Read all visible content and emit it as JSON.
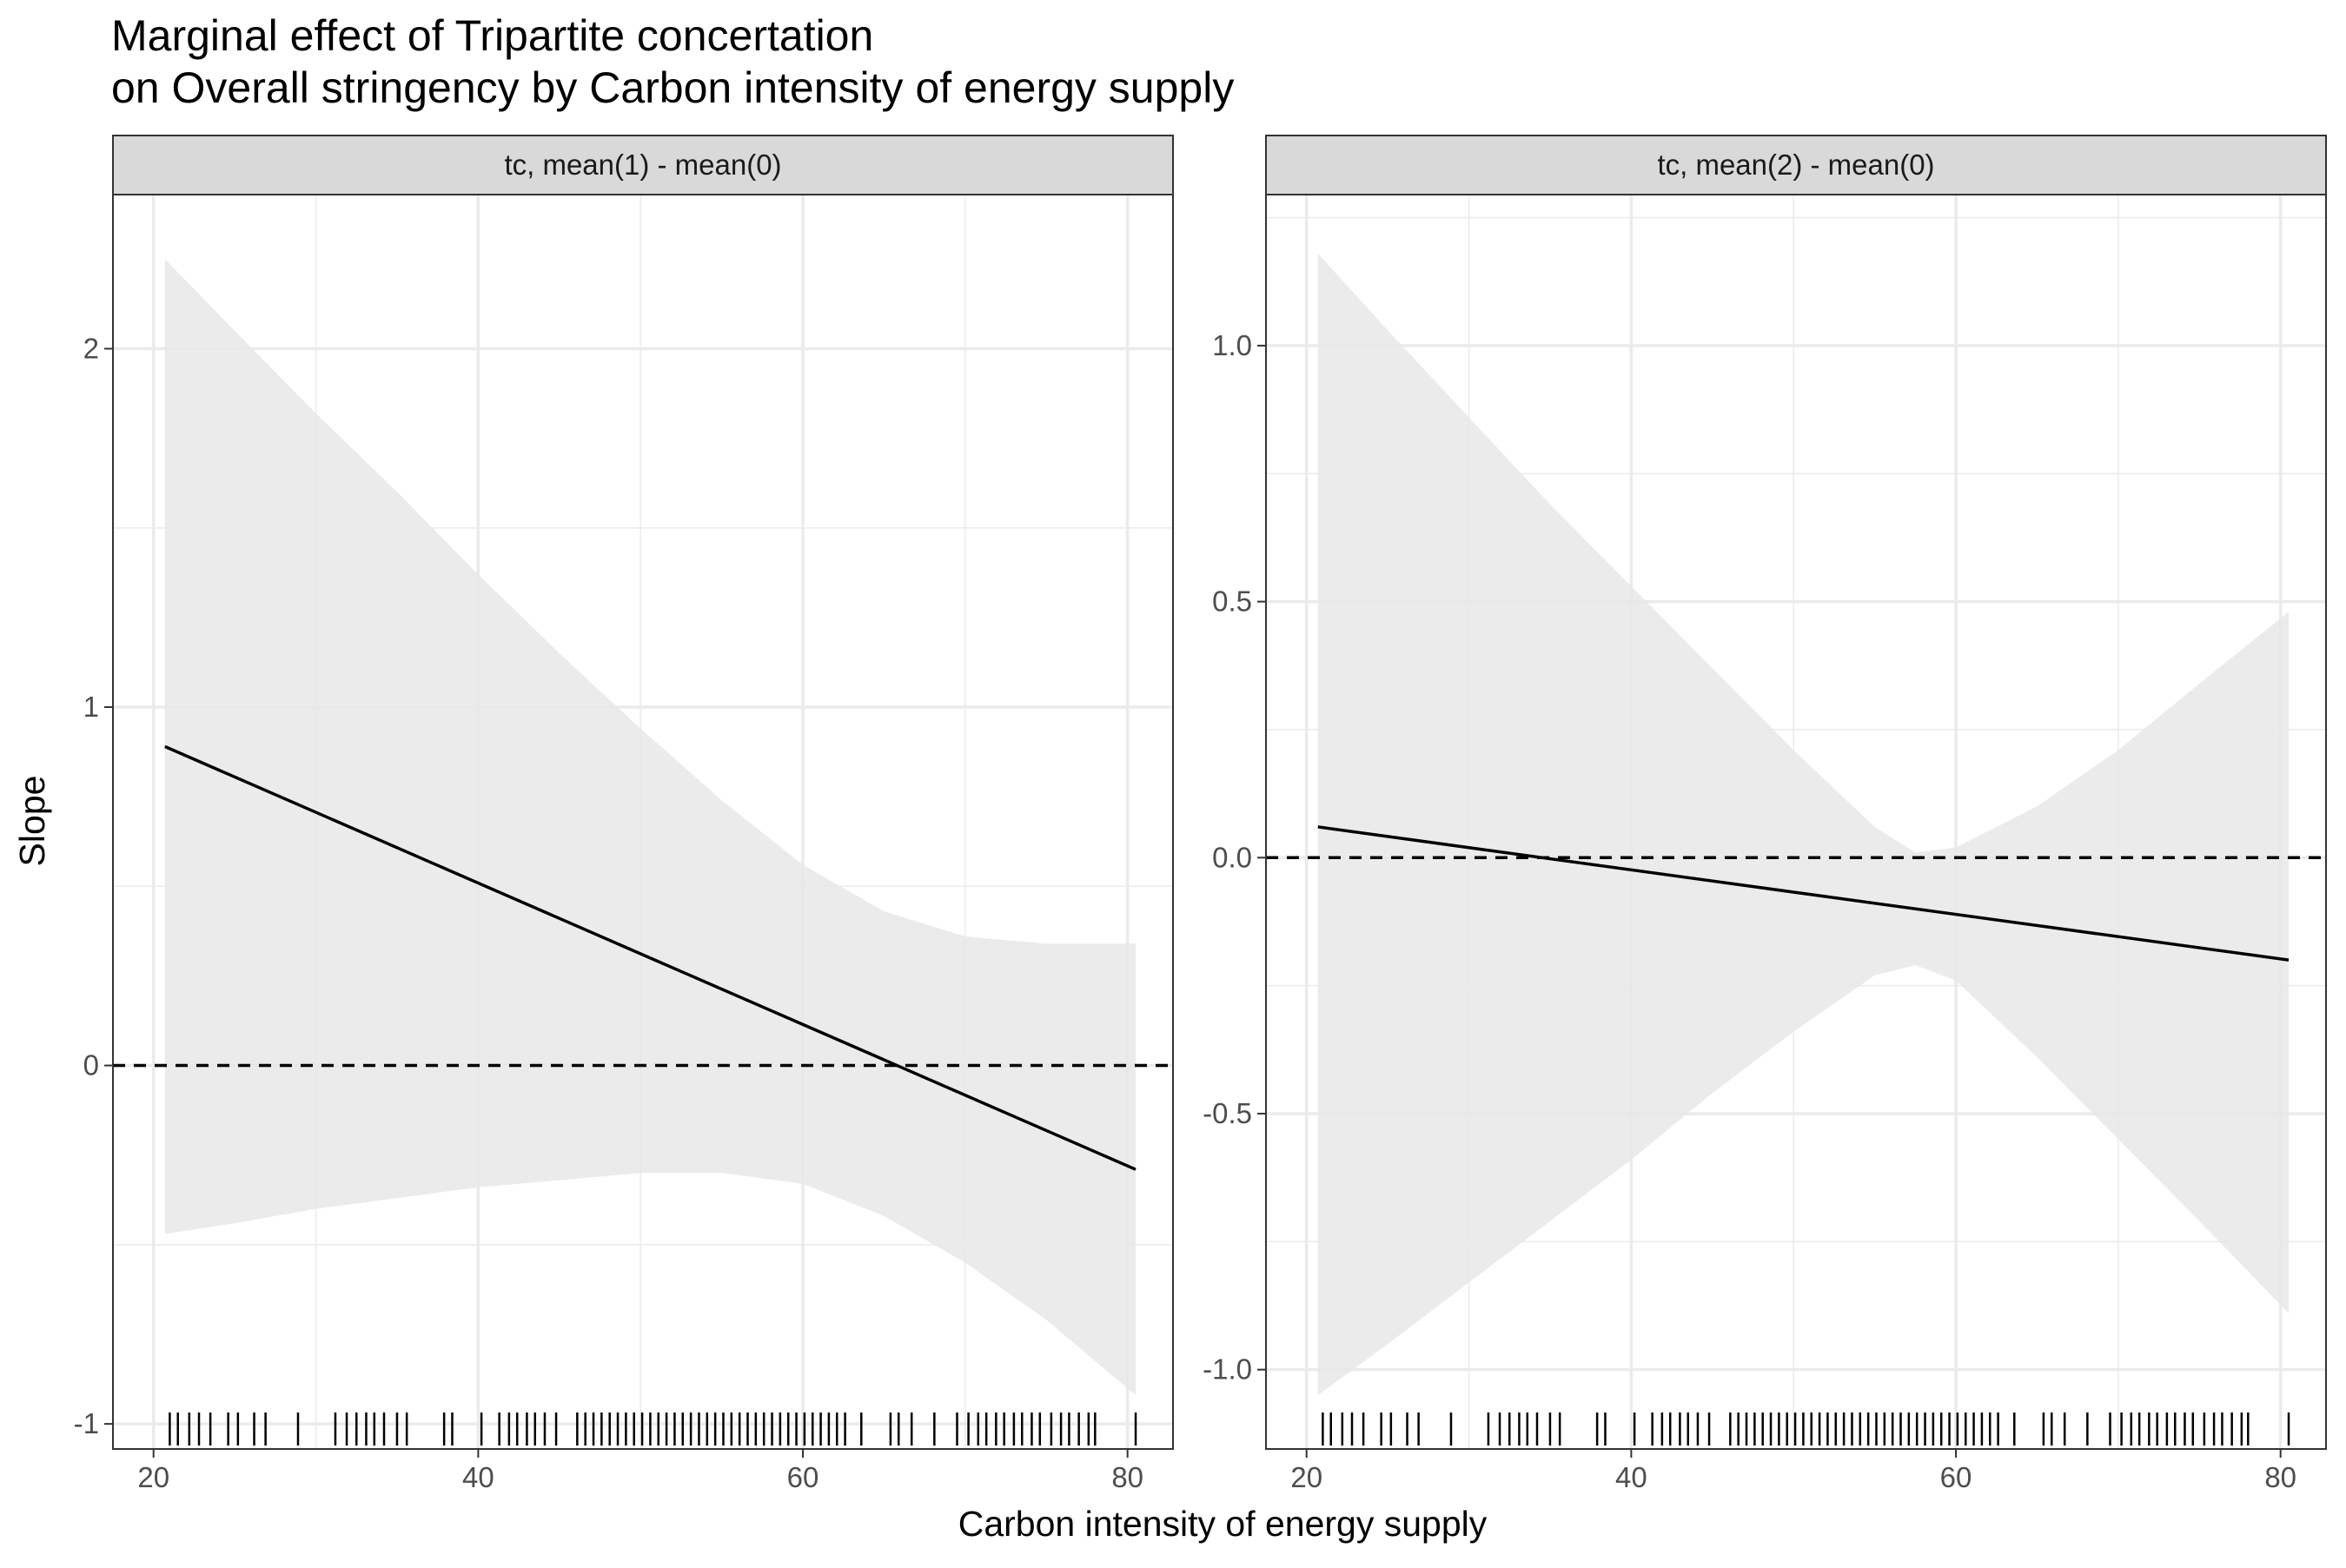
{
  "title": {
    "line1": "Marginal effect of Tripartite concertation",
    "line2": "on Overall stringency by Carbon intensity of energy supply"
  },
  "xlabel": "Carbon intensity of energy supply",
  "ylabel": "Slope",
  "colors": {
    "ribbon": "#e8e8e8",
    "line": "#000000",
    "strip_fill": "#d9d9d9",
    "grid": "#ebebeb",
    "border": "#333333"
  },
  "chart_data": [
    {
      "type": "line",
      "panel": "tc, mean(1) - mean(0)",
      "xlim": [
        17.5,
        82.8
      ],
      "ylim": [
        -1.07,
        2.43
      ],
      "xticks": [
        20,
        40,
        60,
        80
      ],
      "xtick_labels": [
        "20",
        "40",
        "60",
        "80"
      ],
      "yticks": [
        -1,
        0,
        1,
        2
      ],
      "ytick_labels": [
        "-1",
        "0",
        "1",
        "2"
      ],
      "reference_line": 0,
      "series": [
        {
          "x": [
            20.7,
            80.5
          ],
          "y": [
            0.89,
            -0.29
          ]
        }
      ],
      "ribbon": {
        "x": [
          20.7,
          25,
          30,
          35,
          40,
          45,
          50,
          55,
          60,
          65,
          70,
          75,
          80.5
        ],
        "upper": [
          2.25,
          2.05,
          1.82,
          1.6,
          1.37,
          1.15,
          0.94,
          0.74,
          0.56,
          0.43,
          0.36,
          0.34,
          0.34
        ],
        "lower": [
          -0.47,
          -0.44,
          -0.4,
          -0.37,
          -0.34,
          -0.32,
          -0.3,
          -0.3,
          -0.33,
          -0.42,
          -0.55,
          -0.71,
          -0.92
        ]
      },
      "rug": [
        21,
        21.5,
        22.2,
        22.8,
        23.5,
        24.6,
        25.2,
        26.2,
        26.9,
        28.9,
        31.2,
        31.9,
        32.5,
        33.1,
        33.6,
        34.2,
        35,
        35.6,
        37.9,
        38.4,
        40.2,
        41.3,
        41.9,
        42.4,
        43,
        43.5,
        44.1,
        44.8,
        46.1,
        46.6,
        47.1,
        47.6,
        48.1,
        48.6,
        49.1,
        49.6,
        50.1,
        50.6,
        51.1,
        51.6,
        52.1,
        52.6,
        53.1,
        53.6,
        54.1,
        54.6,
        55.1,
        55.6,
        56.1,
        56.6,
        57.1,
        57.6,
        58.1,
        58.6,
        59.1,
        59.6,
        60.1,
        60.6,
        61.1,
        61.6,
        62.1,
        62.6,
        63.6,
        65.4,
        65.9,
        66.7,
        68.1,
        69.5,
        70.2,
        70.8,
        71.3,
        71.9,
        72.4,
        73,
        73.5,
        74.1,
        74.6,
        75.3,
        75.9,
        76.4,
        77,
        77.6,
        78,
        80.5
      ]
    },
    {
      "type": "line",
      "panel": "tc, mean(2) - mean(0)",
      "xlim": [
        17.5,
        82.8
      ],
      "ylim": [
        -1.155,
        1.295
      ],
      "xticks": [
        20,
        40,
        60,
        80
      ],
      "xtick_labels": [
        "20",
        "40",
        "60",
        "80"
      ],
      "yticks": [
        -1.0,
        -0.5,
        0.0,
        0.5,
        1.0
      ],
      "ytick_labels": [
        "-1.0",
        "-0.5",
        "0.0",
        "0.5",
        "1.0"
      ],
      "reference_line": 0,
      "series": [
        {
          "x": [
            20.7,
            80.5
          ],
          "y": [
            0.06,
            -0.2
          ]
        }
      ],
      "ribbon": {
        "x": [
          20.7,
          25,
          30,
          35,
          40,
          45,
          50,
          55,
          57.5,
          60,
          65,
          70,
          75,
          80.5
        ],
        "upper": [
          1.18,
          1.03,
          0.86,
          0.69,
          0.53,
          0.37,
          0.21,
          0.06,
          0.01,
          0.02,
          0.1,
          0.21,
          0.34,
          0.48
        ],
        "lower": [
          -1.05,
          -0.95,
          -0.83,
          -0.71,
          -0.59,
          -0.46,
          -0.34,
          -0.23,
          -0.21,
          -0.24,
          -0.39,
          -0.55,
          -0.71,
          -0.89
        ]
      },
      "rug": [
        21,
        21.5,
        22.2,
        22.8,
        23.5,
        24.6,
        25.2,
        26.2,
        26.9,
        28.9,
        31.2,
        31.9,
        32.5,
        33.1,
        33.6,
        34.2,
        35,
        35.6,
        37.9,
        38.4,
        40.2,
        41.3,
        41.9,
        42.4,
        43,
        43.5,
        44.1,
        44.8,
        46.1,
        46.6,
        47.1,
        47.6,
        48.1,
        48.6,
        49.1,
        49.6,
        50.1,
        50.6,
        51.1,
        51.6,
        52.1,
        52.6,
        53.1,
        53.6,
        54.1,
        54.6,
        55.1,
        55.6,
        56.1,
        56.6,
        57.1,
        57.6,
        58.1,
        58.6,
        59.1,
        59.6,
        60.1,
        60.6,
        61.1,
        61.6,
        62.1,
        62.6,
        63.6,
        65.4,
        65.9,
        66.7,
        68.1,
        69.5,
        70.2,
        70.8,
        71.3,
        71.9,
        72.4,
        73,
        73.5,
        74.1,
        74.6,
        75.3,
        75.9,
        76.4,
        77,
        77.6,
        78,
        80.5
      ]
    }
  ]
}
